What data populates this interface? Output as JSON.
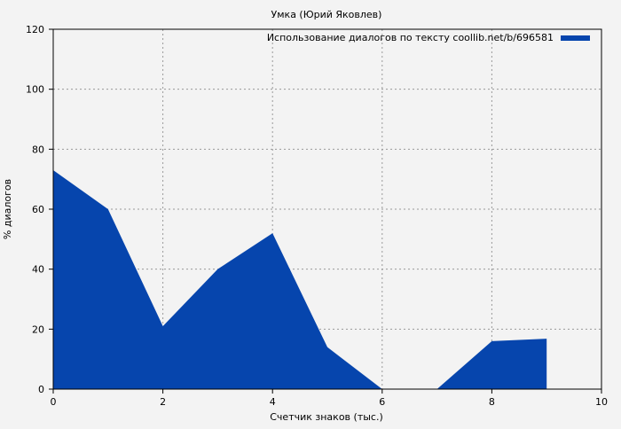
{
  "chart_data": {
    "type": "area",
    "title": "Умка (Юрий Яковлев)",
    "xlabel": "Счетчик знаков (тыс.)",
    "ylabel": "% диалогов",
    "xlim": [
      0,
      10
    ],
    "ylim": [
      0,
      120
    ],
    "xticks": [
      0,
      2,
      4,
      6,
      8,
      10
    ],
    "yticks": [
      0,
      20,
      40,
      60,
      80,
      100,
      120
    ],
    "grid": true,
    "legend_placement": "top-right",
    "series": [
      {
        "name": "Использование диалогов по тексту coollib.net/b/696581",
        "color": "#0645ad",
        "x": [
          0,
          1,
          2,
          3,
          4,
          5,
          6,
          7,
          8,
          9
        ],
        "y": [
          73,
          60,
          21,
          40,
          52,
          14,
          0,
          0,
          16,
          16.8
        ]
      }
    ]
  }
}
